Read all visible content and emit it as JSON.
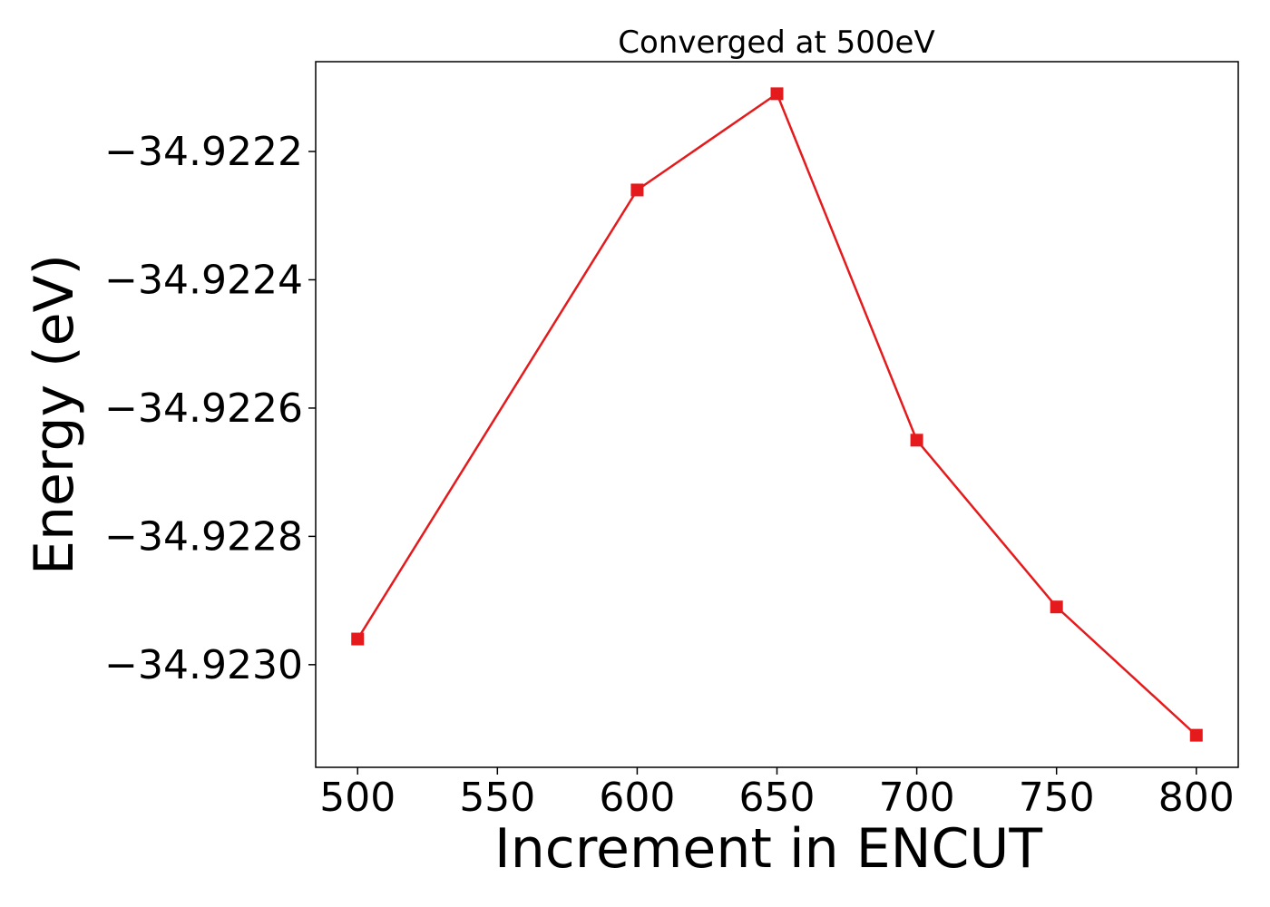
{
  "chart_data": {
    "type": "line",
    "title": "Converged at 500eV",
    "xlabel": "Increment in ENCUT",
    "ylabel": "Energy (eV)",
    "x": [
      500,
      600,
      650,
      700,
      750,
      800
    ],
    "series": [
      {
        "values": [
          -34.92296,
          -34.92226,
          -34.92211,
          -34.92265,
          -34.92291,
          -34.92311
        ],
        "color": "#e41a1c",
        "marker": "square"
      }
    ],
    "xlim": [
      485,
      815
    ],
    "ylim": [
      -34.92316,
      -34.92206
    ],
    "xticks": [
      500,
      550,
      600,
      650,
      700,
      750,
      800
    ],
    "xtick_labels": [
      "500",
      "550",
      "600",
      "650",
      "700",
      "750",
      "800"
    ],
    "yticks": [
      -34.9222,
      -34.9224,
      -34.9226,
      -34.9228,
      -34.923
    ],
    "ytick_labels": [
      "−34.9222",
      "−34.9224",
      "−34.9226",
      "−34.9228",
      "−34.9230"
    ],
    "grid": false,
    "legend": "none"
  }
}
